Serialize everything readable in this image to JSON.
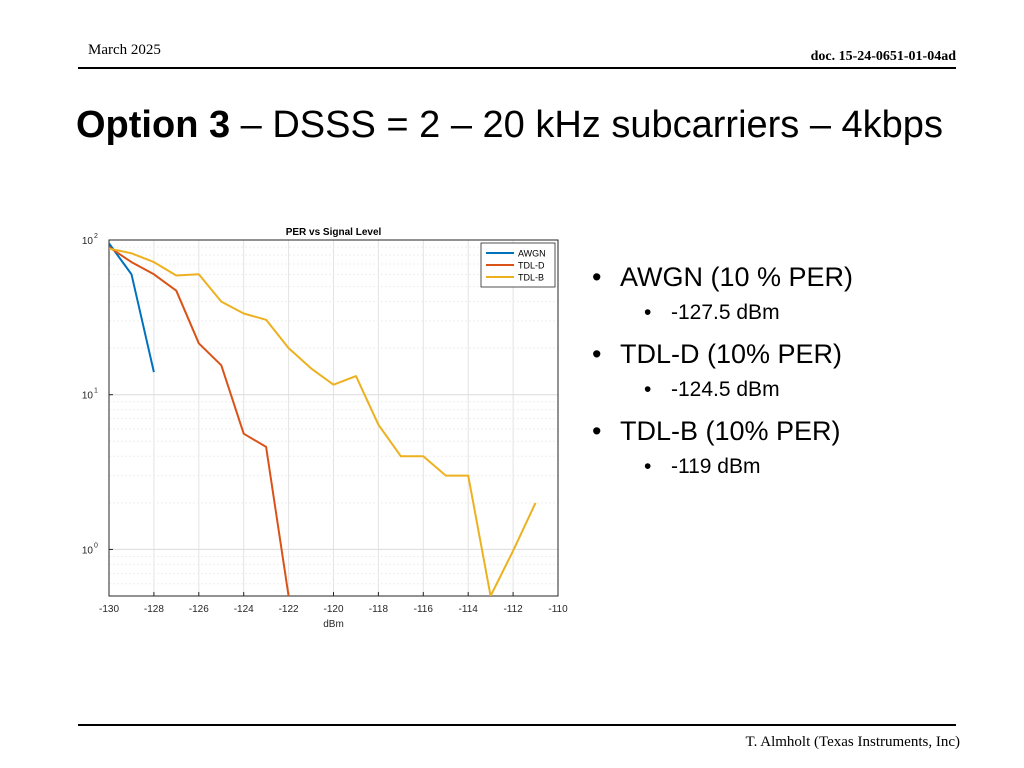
{
  "header": {
    "date": "March 2025",
    "doc_id": "doc. 15-24-0651-01-04ad"
  },
  "title": {
    "bold": "Option 3",
    "rest": " – DSSS = 2 – 20 kHz subcarriers – 4kbps"
  },
  "bullets": [
    {
      "label": "AWGN (10 % PER)",
      "sub": "-127.5 dBm"
    },
    {
      "label": "TDL-D (10% PER)",
      "sub": "-124.5 dBm"
    },
    {
      "label": "TDL-B (10% PER)",
      "sub": "-119 dBm"
    }
  ],
  "footer": {
    "author": "T. Almholt (Texas Instruments, Inc)"
  },
  "chart_data": {
    "type": "line",
    "title": "PER vs Signal Level",
    "xlabel": "dBm",
    "ylabel": "",
    "xlim": [
      -130,
      -110
    ],
    "ylim": [
      0.5,
      100
    ],
    "yscale": "log",
    "grid": true,
    "legend_position": "top-right",
    "x_ticks": [
      "-130",
      "-128",
      "-126",
      "-124",
      "-122",
      "-120",
      "-118",
      "-116",
      "-114",
      "-112",
      "-110"
    ],
    "y_ticks": [
      {
        "base": "10",
        "exp": "2",
        "value": 100
      },
      {
        "base": "10",
        "exp": "1",
        "value": 10
      },
      {
        "base": "10",
        "exp": "0",
        "value": 1
      }
    ],
    "series": [
      {
        "name": "AWGN",
        "color": "#0072bd",
        "x": [
          -130,
          -129,
          -128
        ],
        "y": [
          95,
          60,
          14
        ]
      },
      {
        "name": "TDL-D",
        "color": "#d95319",
        "x": [
          -130,
          -129,
          -128,
          -127,
          -126,
          -125,
          -124,
          -123,
          -122
        ],
        "y": [
          90,
          72,
          60,
          47,
          21.5,
          15.5,
          5.6,
          4.6,
          0.5
        ]
      },
      {
        "name": "TDL-B",
        "color": "#edb120",
        "x": [
          -130,
          -129,
          -128,
          -127,
          -126,
          -125,
          -124,
          -123,
          -122,
          -121,
          -120,
          -119,
          -118,
          -117,
          -116,
          -115,
          -114,
          -113,
          -112,
          -111
        ],
        "y": [
          88,
          82,
          72,
          59,
          60,
          40,
          33.5,
          30.5,
          20,
          14.8,
          11.6,
          13.2,
          6.4,
          4,
          4,
          3,
          3,
          0.5,
          0.98,
          2
        ]
      }
    ]
  }
}
